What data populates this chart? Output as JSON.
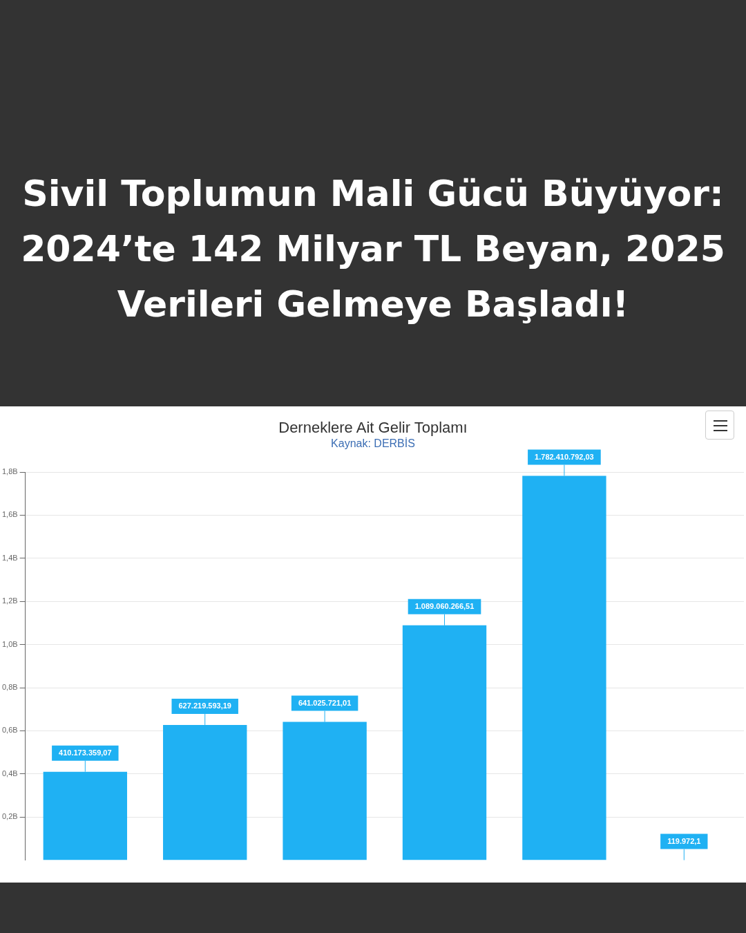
{
  "chart_data": {
    "type": "bar",
    "title": "Sivil Toplumun Mali Gücü Büyüyor: 2024’te 142 Milyar TL Beyan, 2025 Verileri Gelmeye Başladı!",
    "subtitle": "Derneklere Ait Gelir Toplamı",
    "annotations": [
      "Kaynak: DERBİS"
    ],
    "categories": [
      null,
      null,
      null,
      null,
      null,
      null
    ],
    "values": [
      410173359.07,
      627219593.19,
      641025721.01,
      1089060266.51,
      1782410792.03,
      119972.1
    ],
    "value_labels": [
      "410.173.359,07",
      "627.219.593,19",
      "641.025.721,01",
      "1.089.060.266,51",
      "1.782.410.792,03",
      "119.972,1"
    ],
    "color": "#1fb1f3",
    "ylim": [
      0,
      1800000000
    ],
    "yticks": [
      {
        "value": 200000000,
        "label": "0,2B"
      },
      {
        "value": 400000000,
        "label": "0,4B"
      },
      {
        "value": 600000000,
        "label": "0,6B"
      },
      {
        "value": 800000000,
        "label": "0,8B"
      },
      {
        "value": 1000000000,
        "label": "1,0B"
      },
      {
        "value": 1200000000,
        "label": "1,2B"
      },
      {
        "value": 1400000000,
        "label": "1,4B"
      },
      {
        "value": 1600000000,
        "label": "1,6B"
      },
      {
        "value": 1800000000,
        "label": "1,8B"
      }
    ],
    "grid": "y",
    "legend": false
  }
}
